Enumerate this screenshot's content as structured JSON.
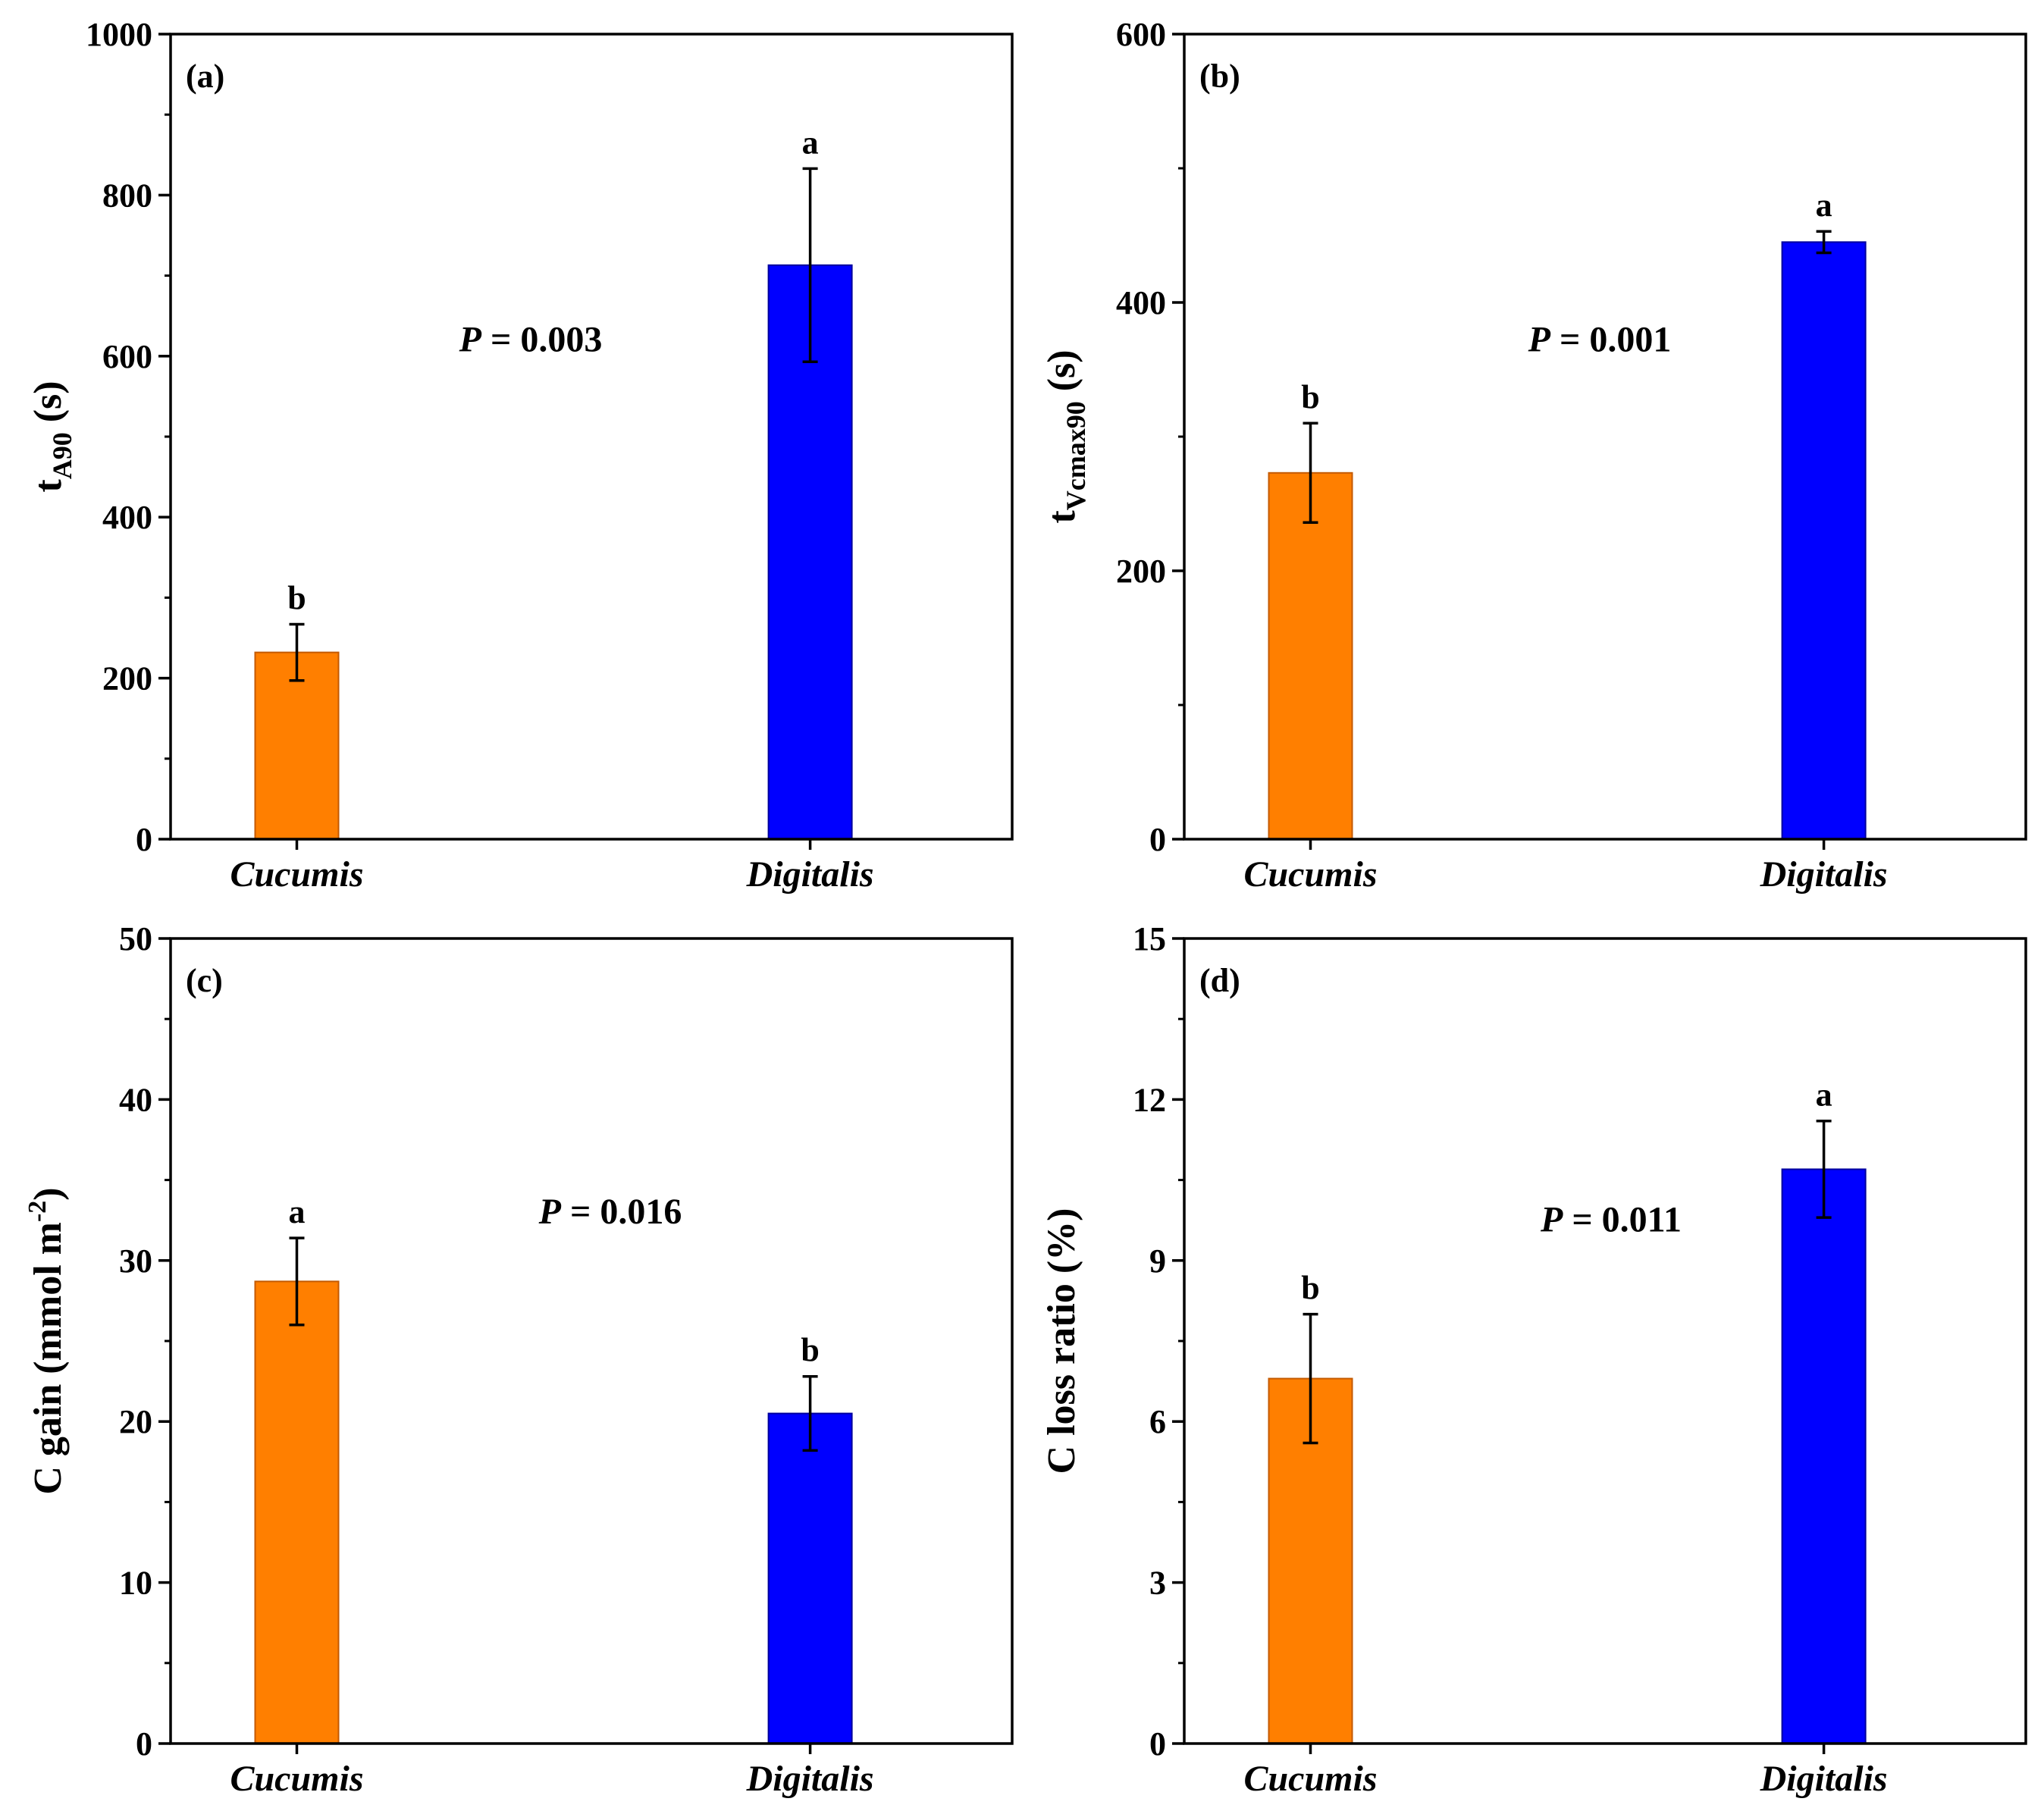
{
  "colors": {
    "cucumis": "#FF7F00",
    "cucumis_edge": "#C45A00",
    "digitalis": "#0000FF",
    "digitalis_edge": "#00009E",
    "axis": "#000000"
  },
  "chart_data": [
    {
      "type": "bar",
      "panel": "(a)",
      "ylabel": {
        "main": "t",
        "sub": "A90",
        "unit": " (s)"
      },
      "ylim": [
        0,
        1000
      ],
      "yticks": [
        0,
        200,
        400,
        600,
        800,
        1000
      ],
      "yminor_step": 100,
      "categories": [
        "Cucumis",
        "Digitalis"
      ],
      "values": [
        232,
        713
      ],
      "errors": [
        35,
        120
      ],
      "letters": [
        "b",
        "a"
      ],
      "p_value": {
        "p": "P",
        "rest": " = 0.003"
      },
      "grid": false
    },
    {
      "type": "bar",
      "panel": "(b)",
      "ylabel": {
        "main": "t",
        "sub": "Vcmax90",
        "unit": " (s)"
      },
      "ylim": [
        0,
        600
      ],
      "yticks": [
        0,
        200,
        400,
        600
      ],
      "yminor_step": 100,
      "categories": [
        "Cucumis",
        "Digitalis"
      ],
      "values": [
        273,
        445
      ],
      "errors": [
        37,
        8
      ],
      "letters": [
        "b",
        "a"
      ],
      "p_value": {
        "p": "P",
        "rest": " = 0.001"
      },
      "grid": false
    },
    {
      "type": "bar",
      "panel": "(c)",
      "ylabel": {
        "pre": "C gain (mmol m",
        "sup": "-2",
        "post": ")"
      },
      "ylim": [
        0,
        50
      ],
      "yticks": [
        0,
        10,
        20,
        30,
        40,
        50
      ],
      "yminor_step": 5,
      "categories": [
        "Cucumis",
        "Digitalis"
      ],
      "values": [
        28.7,
        20.5
      ],
      "errors": [
        2.7,
        2.3
      ],
      "letters": [
        "a",
        "b"
      ],
      "p_value": {
        "p": "P",
        "rest": " = 0.016"
      },
      "grid": false
    },
    {
      "type": "bar",
      "panel": "(d)",
      "ylabel": {
        "pre": "C loss ratio (%)"
      },
      "ylim": [
        0,
        15
      ],
      "yticks": [
        0,
        3,
        6,
        9,
        12,
        15
      ],
      "yminor_step": 1.5,
      "categories": [
        "Cucumis",
        "Digitalis"
      ],
      "values": [
        6.8,
        10.7
      ],
      "errors": [
        1.2,
        0.9
      ],
      "letters": [
        "b",
        "a"
      ],
      "p_value": {
        "p": "P",
        "rest": " = 0.011"
      },
      "grid": false
    }
  ]
}
